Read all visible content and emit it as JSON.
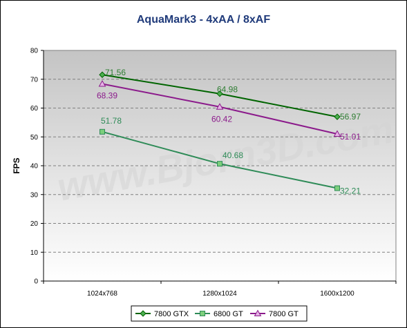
{
  "chart_data": {
    "type": "line",
    "title": "AquaMark3 - 4xAA / 8xAF",
    "xlabel": "",
    "ylabel": "FPS",
    "categories": [
      "1024x768",
      "1280x1024",
      "1600x1200"
    ],
    "ylim": [
      0,
      80
    ],
    "yticks": [
      0,
      10,
      20,
      30,
      40,
      50,
      60,
      70,
      80
    ],
    "grid": true,
    "legend_position": "bottom",
    "watermark": "www.Bjorn3D.com",
    "series": [
      {
        "name": "7800 GTX",
        "color": "#006400",
        "marker": "diamond",
        "values": [
          71.56,
          64.98,
          56.97
        ],
        "labels": [
          "71.56",
          "64.98",
          "56.97"
        ]
      },
      {
        "name": "6800 GT",
        "color": "#2e8b57",
        "marker": "square",
        "values": [
          51.78,
          40.68,
          32.21
        ],
        "labels": [
          "51.78",
          "40.68",
          "32.21"
        ]
      },
      {
        "name": "7800 GT",
        "color": "#8b1a8b",
        "marker": "triangle",
        "values": [
          68.39,
          60.42,
          51.01
        ],
        "labels": [
          "68.39",
          "60.42",
          "51.01"
        ]
      }
    ]
  }
}
